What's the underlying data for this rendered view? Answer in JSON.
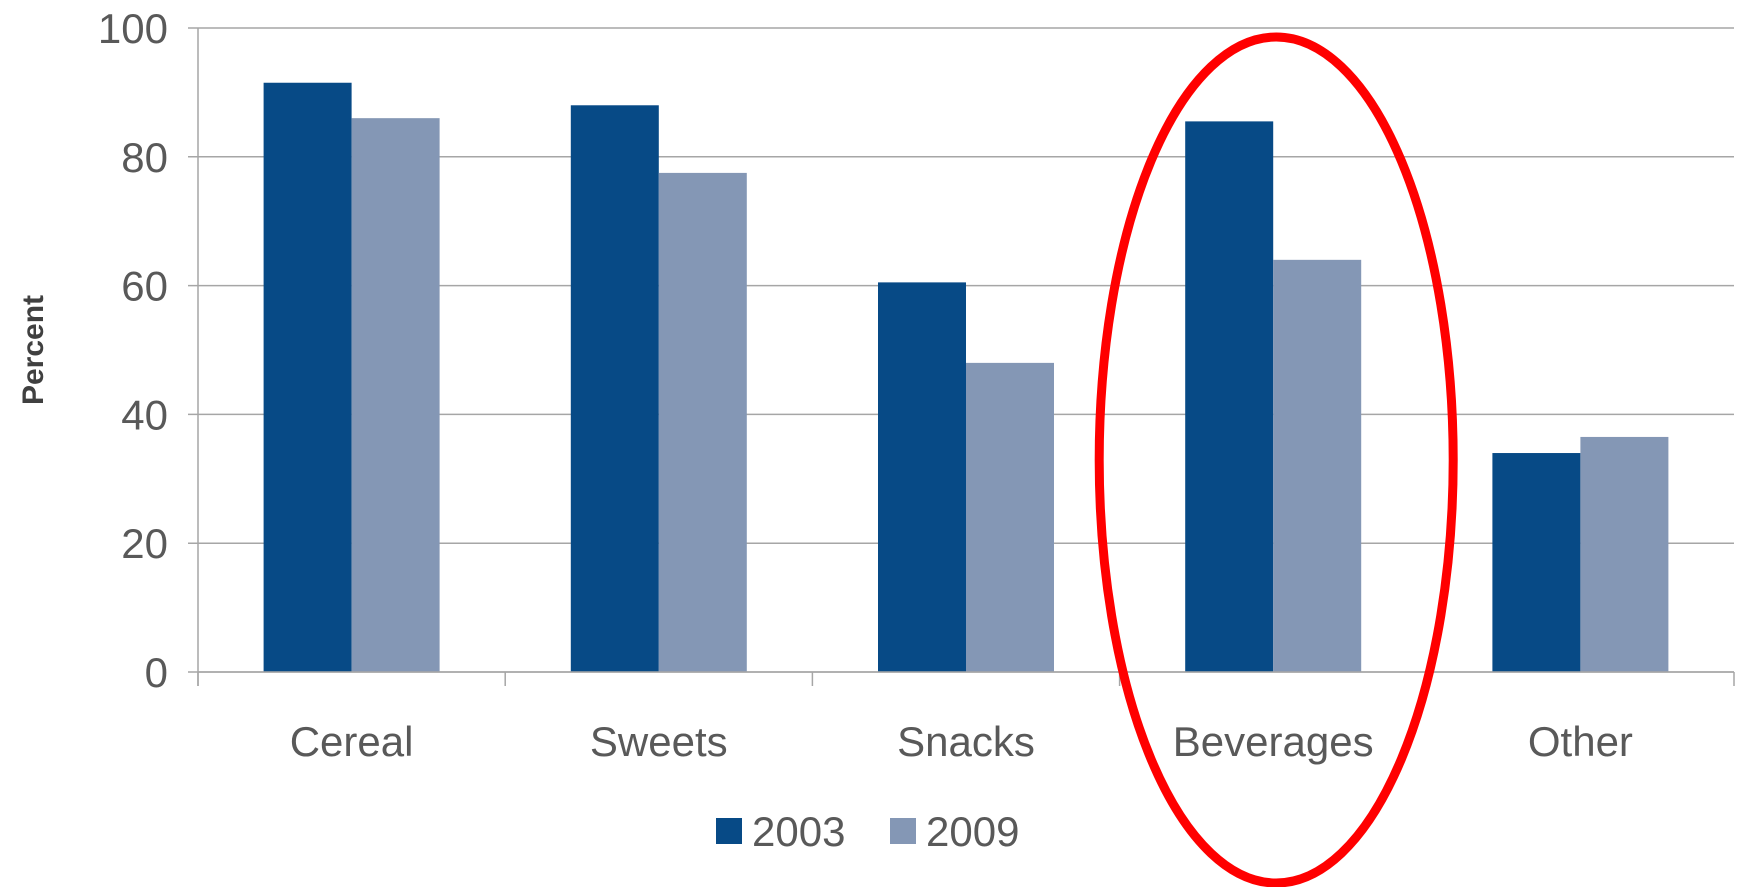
{
  "chart_data": {
    "type": "bar",
    "categories": [
      "Cereal",
      "Sweets",
      "Snacks",
      "Beverages",
      "Other"
    ],
    "series": [
      {
        "name": "2003",
        "values": [
          91.5,
          88.0,
          60.5,
          85.5,
          34.0
        ],
        "color": "#074A86"
      },
      {
        "name": "2009",
        "values": [
          86.0,
          77.5,
          48.0,
          64.0,
          36.5
        ],
        "color": "#8497B5"
      }
    ],
    "ylabel": "Percent",
    "ylim": [
      0,
      100
    ],
    "yticks": [
      0,
      20,
      40,
      60,
      80,
      100
    ],
    "grid": true,
    "legend": "bottom-center",
    "highlight": {
      "category": "Beverages",
      "shape": "ellipse",
      "color": "#FF0000"
    },
    "gridColor": "#A6A6A6",
    "axisColor": "#A6A6A6"
  }
}
